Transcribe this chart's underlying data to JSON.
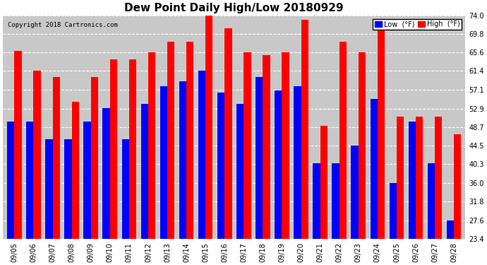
{
  "title": "Dew Point Daily High/Low 20180929",
  "copyright": "Copyright 2018 Cartronics.com",
  "dates": [
    "09/05",
    "09/06",
    "09/07",
    "09/08",
    "09/09",
    "09/10",
    "09/11",
    "09/12",
    "09/13",
    "09/14",
    "09/15",
    "09/16",
    "09/17",
    "09/18",
    "09/19",
    "09/20",
    "09/21",
    "09/22",
    "09/23",
    "09/24",
    "09/25",
    "09/26",
    "09/27",
    "09/28"
  ],
  "high": [
    66.0,
    61.4,
    60.0,
    54.5,
    60.0,
    64.0,
    64.0,
    65.6,
    68.0,
    68.0,
    74.0,
    71.0,
    65.6,
    65.0,
    65.6,
    73.0,
    49.0,
    68.0,
    65.6,
    73.0,
    51.0,
    51.0,
    51.0,
    47.0
  ],
  "low": [
    50.0,
    50.0,
    46.0,
    46.0,
    50.0,
    53.0,
    46.0,
    54.0,
    58.0,
    59.0,
    61.5,
    56.5,
    54.0,
    60.0,
    57.0,
    58.0,
    40.5,
    40.5,
    44.5,
    55.0,
    36.0,
    50.0,
    40.5,
    27.5
  ],
  "ylim": [
    23.4,
    74.0
  ],
  "yticks": [
    23.4,
    27.6,
    31.8,
    36.0,
    40.3,
    44.5,
    48.7,
    52.9,
    57.1,
    61.4,
    65.6,
    69.8,
    74.0
  ],
  "bar_width": 0.38,
  "high_color": "#FF0000",
  "low_color": "#0000FF",
  "bg_color": "#FFFFFF",
  "plot_bg_color": "#C8C8C8",
  "grid_color": "#FFFFFF",
  "title_fontsize": 11,
  "tick_fontsize": 7,
  "legend_high_label": "High  (°F)",
  "legend_low_label": "Low  (°F)"
}
